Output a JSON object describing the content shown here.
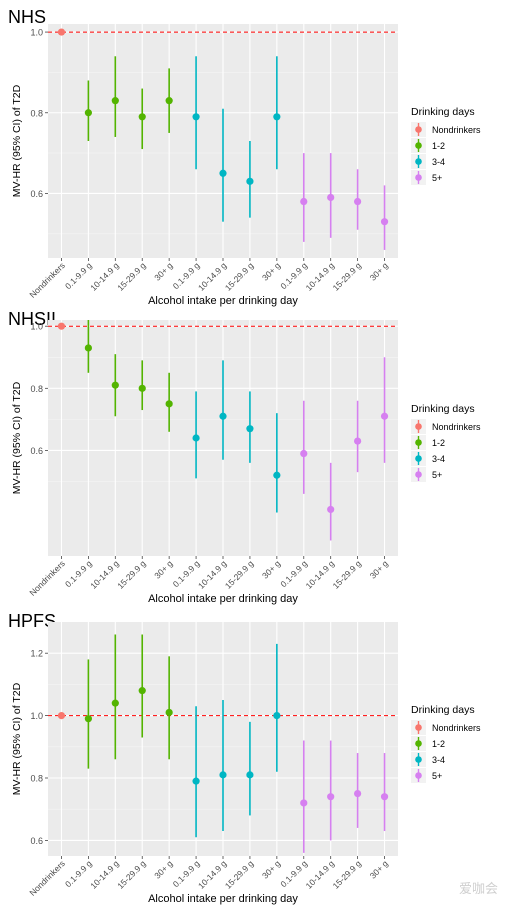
{
  "chart_data": [
    {
      "type": "scatter",
      "title": "NHS",
      "xlabel": "Alcohol intake per drinking day",
      "ylabel": "MV-HR (95% CI) of T2D",
      "ylim": [
        0.44,
        1.02
      ],
      "yticks": [
        0.6,
        0.8,
        1.0
      ],
      "yticklabels": [
        "0.6",
        "0.8",
        "1.0"
      ],
      "reference_line": 1.0,
      "categories": [
        "Nondrinkers",
        "0.1-9.9 g",
        "10-14.9 g",
        "15-29.9 g",
        "30+ g",
        "0.1-9.9 g",
        "10-14.9 g",
        "15-29.9 g",
        "30+ g",
        "0.1-9.9 g",
        "10-14.9 g",
        "15-29.9 g",
        "30+ g"
      ],
      "legend_title": "Drinking days",
      "legend_position": "right",
      "series": [
        {
          "name": "Nondrinkers",
          "color": "#f8766d",
          "points": [
            {
              "x": 0,
              "y": 1.0,
              "lo": 1.0,
              "hi": 1.0
            }
          ]
        },
        {
          "name": "1-2",
          "color": "#53b400",
          "points": [
            {
              "x": 1,
              "y": 0.8,
              "lo": 0.73,
              "hi": 0.88
            },
            {
              "x": 2,
              "y": 0.83,
              "lo": 0.74,
              "hi": 0.94
            },
            {
              "x": 3,
              "y": 0.79,
              "lo": 0.71,
              "hi": 0.86
            },
            {
              "x": 4,
              "y": 0.83,
              "lo": 0.75,
              "hi": 0.91
            }
          ]
        },
        {
          "name": "3-4",
          "color": "#00b6c3",
          "points": [
            {
              "x": 5,
              "y": 0.79,
              "lo": 0.66,
              "hi": 0.94
            },
            {
              "x": 6,
              "y": 0.65,
              "lo": 0.53,
              "hi": 0.81
            },
            {
              "x": 7,
              "y": 0.63,
              "lo": 0.54,
              "hi": 0.73
            },
            {
              "x": 8,
              "y": 0.79,
              "lo": 0.66,
              "hi": 0.94
            }
          ]
        },
        {
          "name": "5+",
          "color": "#d680f0",
          "points": [
            {
              "x": 9,
              "y": 0.58,
              "lo": 0.48,
              "hi": 0.7
            },
            {
              "x": 10,
              "y": 0.59,
              "lo": 0.49,
              "hi": 0.7
            },
            {
              "x": 11,
              "y": 0.58,
              "lo": 0.51,
              "hi": 0.66
            },
            {
              "x": 12,
              "y": 0.53,
              "lo": 0.46,
              "hi": 0.62
            }
          ]
        }
      ]
    },
    {
      "type": "scatter",
      "title": "NHSII",
      "xlabel": "Alcohol intake per drinking day",
      "ylabel": "MV-HR (95% CI) of T2D",
      "ylim": [
        0.26,
        1.02
      ],
      "yticks": [
        0.6,
        0.8,
        1.0
      ],
      "yticklabels": [
        "0.6",
        "0.8",
        "1.0"
      ],
      "reference_line": 1.0,
      "categories": [
        "Nondrinkers",
        "0.1-9.9 g",
        "10-14.9 g",
        "15-29.9 g",
        "30+ g",
        "0.1-9.9 g",
        "10-14.9 g",
        "15-29.9 g",
        "30+ g",
        "0.1-9.9 g",
        "10-14.9 g",
        "15-29.9 g",
        "30+ g"
      ],
      "legend_title": "Drinking days",
      "legend_position": "right",
      "series": [
        {
          "name": "Nondrinkers",
          "color": "#f8766d",
          "points": [
            {
              "x": 0,
              "y": 1.0,
              "lo": 1.0,
              "hi": 1.0
            }
          ]
        },
        {
          "name": "1-2",
          "color": "#53b400",
          "points": [
            {
              "x": 1,
              "y": 0.93,
              "lo": 0.85,
              "hi": 1.02
            },
            {
              "x": 2,
              "y": 0.81,
              "lo": 0.71,
              "hi": 0.91
            },
            {
              "x": 3,
              "y": 0.8,
              "lo": 0.73,
              "hi": 0.89
            },
            {
              "x": 4,
              "y": 0.75,
              "lo": 0.66,
              "hi": 0.85
            }
          ]
        },
        {
          "name": "3-4",
          "color": "#00b6c3",
          "points": [
            {
              "x": 5,
              "y": 0.64,
              "lo": 0.51,
              "hi": 0.79
            },
            {
              "x": 6,
              "y": 0.71,
              "lo": 0.57,
              "hi": 0.89
            },
            {
              "x": 7,
              "y": 0.67,
              "lo": 0.56,
              "hi": 0.79
            },
            {
              "x": 8,
              "y": 0.52,
              "lo": 0.4,
              "hi": 0.72
            }
          ]
        },
        {
          "name": "5+",
          "color": "#d680f0",
          "points": [
            {
              "x": 9,
              "y": 0.59,
              "lo": 0.46,
              "hi": 0.76
            },
            {
              "x": 10,
              "y": 0.41,
              "lo": 0.31,
              "hi": 0.56
            },
            {
              "x": 11,
              "y": 0.63,
              "lo": 0.53,
              "hi": 0.76
            },
            {
              "x": 12,
              "y": 0.71,
              "lo": 0.56,
              "hi": 0.9
            }
          ]
        }
      ]
    },
    {
      "type": "scatter",
      "title": "HPFS",
      "xlabel": "Alcohol intake per drinking day",
      "ylabel": "MV-HR (95% CI) of T2D",
      "ylim": [
        0.55,
        1.3
      ],
      "yticks": [
        0.6,
        0.8,
        1.0,
        1.2
      ],
      "yticklabels": [
        "0.6",
        "0.8",
        "1.0",
        "1.2"
      ],
      "reference_line": 1.0,
      "categories": [
        "Nondrinkers",
        "0.1-9.9 g",
        "10-14.9 g",
        "15-29.9 g",
        "30+ g",
        "0.1-9.9 g",
        "10-14.9 g",
        "15-29.9 g",
        "30+ g",
        "0.1-9.9 g",
        "10-14.9 g",
        "15-29.9 g",
        "30+ g"
      ],
      "legend_title": "Drinking days",
      "legend_position": "right",
      "series": [
        {
          "name": "Nondrinkers",
          "color": "#f8766d",
          "points": [
            {
              "x": 0,
              "y": 1.0,
              "lo": 1.0,
              "hi": 1.0
            }
          ]
        },
        {
          "name": "1-2",
          "color": "#53b400",
          "points": [
            {
              "x": 1,
              "y": 0.99,
              "lo": 0.83,
              "hi": 1.18
            },
            {
              "x": 2,
              "y": 1.04,
              "lo": 0.86,
              "hi": 1.26
            },
            {
              "x": 3,
              "y": 1.08,
              "lo": 0.93,
              "hi": 1.26
            },
            {
              "x": 4,
              "y": 1.01,
              "lo": 0.86,
              "hi": 1.19
            }
          ]
        },
        {
          "name": "3-4",
          "color": "#00b6c3",
          "points": [
            {
              "x": 5,
              "y": 0.79,
              "lo": 0.61,
              "hi": 1.03
            },
            {
              "x": 6,
              "y": 0.81,
              "lo": 0.63,
              "hi": 1.05
            },
            {
              "x": 7,
              "y": 0.81,
              "lo": 0.68,
              "hi": 0.98
            },
            {
              "x": 8,
              "y": 1.0,
              "lo": 0.82,
              "hi": 1.23
            }
          ]
        },
        {
          "name": "5+",
          "color": "#d680f0",
          "points": [
            {
              "x": 9,
              "y": 0.72,
              "lo": 0.56,
              "hi": 0.92
            },
            {
              "x": 10,
              "y": 0.74,
              "lo": 0.6,
              "hi": 0.92
            },
            {
              "x": 11,
              "y": 0.75,
              "lo": 0.64,
              "hi": 0.88
            },
            {
              "x": 12,
              "y": 0.74,
              "lo": 0.63,
              "hi": 0.88
            }
          ]
        }
      ]
    }
  ],
  "watermark": "爱咖会"
}
